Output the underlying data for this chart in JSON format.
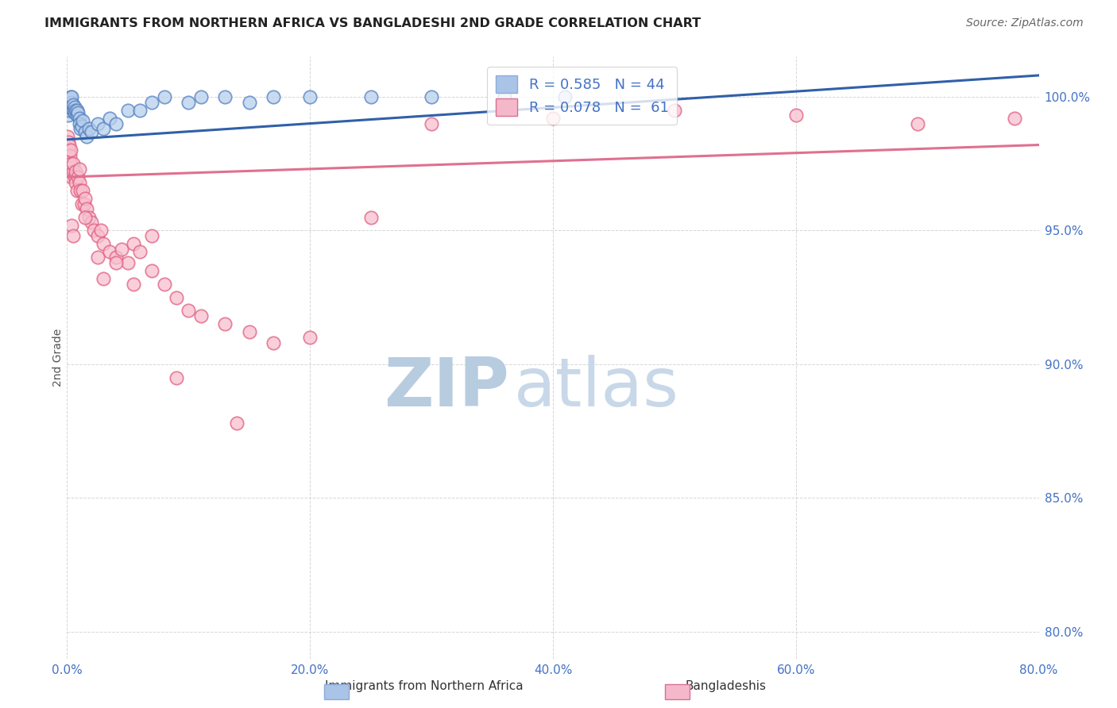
{
  "title": "IMMIGRANTS FROM NORTHERN AFRICA VS BANGLADESHI 2ND GRADE CORRELATION CHART",
  "source": "Source: ZipAtlas.com",
  "ylabel": "2nd Grade",
  "x_tick_labels": [
    "0.0%",
    "20.0%",
    "40.0%",
    "60.0%",
    "80.0%"
  ],
  "x_tick_positions": [
    0.0,
    20.0,
    40.0,
    60.0,
    80.0
  ],
  "y_tick_labels": [
    "80.0%",
    "85.0%",
    "90.0%",
    "95.0%",
    "100.0%"
  ],
  "y_tick_positions": [
    80.0,
    85.0,
    90.0,
    95.0,
    100.0
  ],
  "xlim": [
    0.0,
    80.0
  ],
  "ylim": [
    79.0,
    101.5
  ],
  "legend_label_blue": "R = 0.585   N = 44",
  "legend_label_pink": "R = 0.078   N =  61",
  "legend_blue_color": "#aac4e8",
  "legend_pink_color": "#f5b8cb",
  "blue_dot_face": "#b8d0ec",
  "blue_dot_edge": "#5580c0",
  "pink_dot_face": "#f8c0d0",
  "pink_dot_edge": "#e06080",
  "blue_line_color": "#3060a8",
  "pink_line_color": "#e07090",
  "background_color": "#ffffff",
  "grid_color": "#cccccc",
  "tick_color": "#4472c4",
  "title_color": "#222222",
  "source_color": "#666666",
  "ylabel_color": "#555555",
  "watermark_zip_color": "#c8d8e8",
  "watermark_atlas_color": "#c8d8e8",
  "blue_scatter_x": [
    0.1,
    0.15,
    0.2,
    0.2,
    0.25,
    0.3,
    0.3,
    0.4,
    0.4,
    0.5,
    0.5,
    0.6,
    0.6,
    0.7,
    0.8,
    0.8,
    0.9,
    1.0,
    1.0,
    1.1,
    1.2,
    1.3,
    1.5,
    1.6,
    1.8,
    2.0,
    2.5,
    3.0,
    3.5,
    4.0,
    5.0,
    6.0,
    7.0,
    8.0,
    10.0,
    11.0,
    13.0,
    15.0,
    17.0,
    20.0,
    25.0,
    30.0,
    36.0,
    41.0
  ],
  "blue_scatter_y": [
    99.3,
    99.5,
    99.6,
    99.8,
    99.7,
    99.9,
    100.0,
    99.8,
    100.0,
    99.5,
    99.7,
    99.4,
    99.6,
    99.5,
    99.3,
    99.5,
    99.4,
    99.2,
    99.0,
    98.8,
    98.9,
    99.1,
    98.7,
    98.5,
    98.8,
    98.7,
    99.0,
    98.8,
    99.2,
    99.0,
    99.5,
    99.5,
    99.8,
    100.0,
    99.8,
    100.0,
    100.0,
    99.8,
    100.0,
    100.0,
    100.0,
    100.0,
    100.0,
    100.0
  ],
  "pink_scatter_x": [
    0.05,
    0.1,
    0.15,
    0.2,
    0.25,
    0.3,
    0.3,
    0.4,
    0.5,
    0.5,
    0.6,
    0.7,
    0.7,
    0.8,
    0.9,
    1.0,
    1.0,
    1.1,
    1.2,
    1.3,
    1.4,
    1.5,
    1.6,
    1.8,
    2.0,
    2.2,
    2.5,
    2.8,
    3.0,
    3.5,
    4.0,
    4.5,
    5.0,
    5.5,
    6.0,
    7.0,
    8.0,
    9.0,
    10.0,
    11.0,
    13.0,
    15.0,
    17.0,
    20.0,
    25.0,
    30.0,
    40.0,
    50.0,
    60.0,
    70.0,
    78.0,
    0.4,
    0.5,
    1.5,
    2.5,
    3.0,
    4.0,
    5.5,
    7.0,
    9.0,
    14.0
  ],
  "pink_scatter_y": [
    98.5,
    98.3,
    98.0,
    98.2,
    97.8,
    97.5,
    98.0,
    97.0,
    97.2,
    97.5,
    97.0,
    96.8,
    97.2,
    96.5,
    97.0,
    96.8,
    97.3,
    96.5,
    96.0,
    96.5,
    96.0,
    96.2,
    95.8,
    95.5,
    95.3,
    95.0,
    94.8,
    95.0,
    94.5,
    94.2,
    94.0,
    94.3,
    93.8,
    94.5,
    94.2,
    93.5,
    93.0,
    92.5,
    92.0,
    91.8,
    91.5,
    91.2,
    90.8,
    91.0,
    95.5,
    99.0,
    99.2,
    99.5,
    99.3,
    99.0,
    99.2,
    95.2,
    94.8,
    95.5,
    94.0,
    93.2,
    93.8,
    93.0,
    94.8,
    89.5,
    87.8
  ]
}
